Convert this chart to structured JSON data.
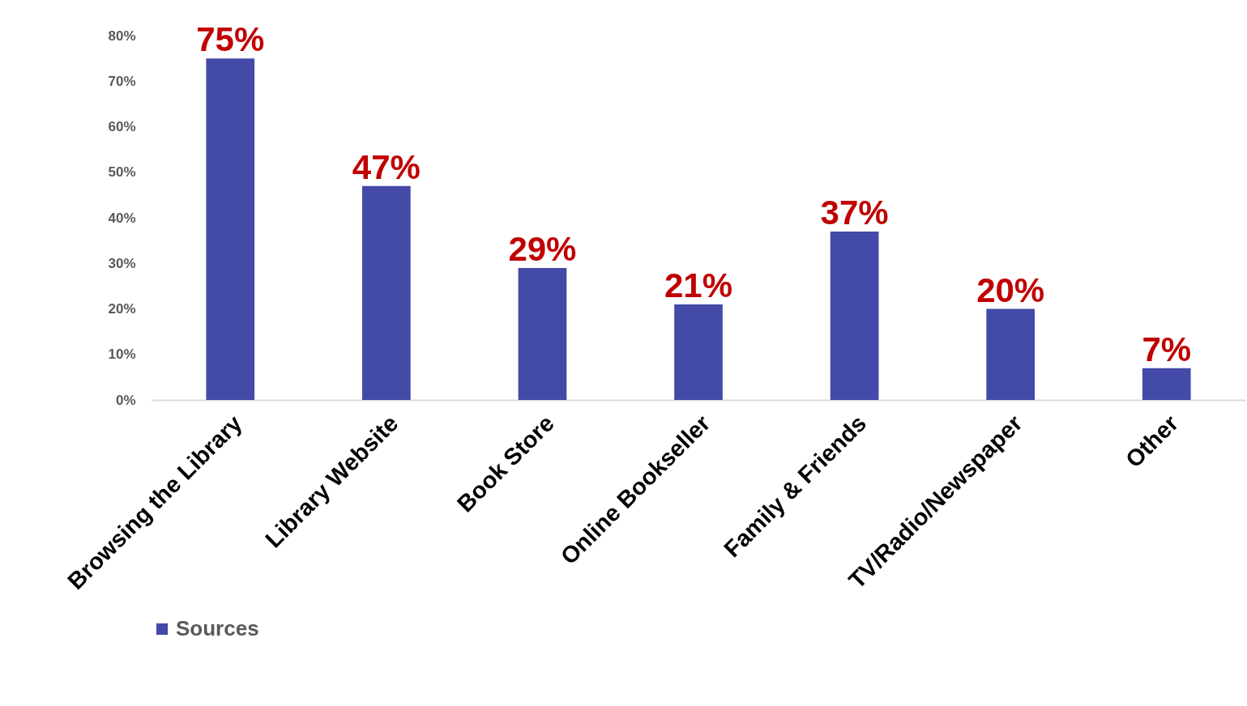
{
  "chart_data": {
    "type": "bar",
    "categories": [
      "Browsing the Library",
      "Library Website",
      "Book Store",
      "Online Bookseller",
      "Family & Friends",
      "TV/Radio/Newspaper",
      "Other"
    ],
    "series": [
      {
        "name": "Sources",
        "color": "#444aa8",
        "values": [
          75,
          47,
          29,
          21,
          37,
          20,
          7
        ],
        "value_labels": [
          "75%",
          "47%",
          "29%",
          "21%",
          "37%",
          "20%",
          "7%"
        ]
      }
    ],
    "ylim": [
      0,
      80
    ],
    "yticks": [
      {
        "value": 0,
        "label": "0%"
      },
      {
        "value": 10,
        "label": "10%"
      },
      {
        "value": 20,
        "label": "20%"
      },
      {
        "value": 30,
        "label": "30%"
      },
      {
        "value": 40,
        "label": "40%"
      },
      {
        "value": 50,
        "label": "50%"
      },
      {
        "value": 60,
        "label": "60%"
      },
      {
        "value": 70,
        "label": "70%"
      },
      {
        "value": 80,
        "label": "80%"
      }
    ],
    "grid": false,
    "legend": "bottom"
  }
}
